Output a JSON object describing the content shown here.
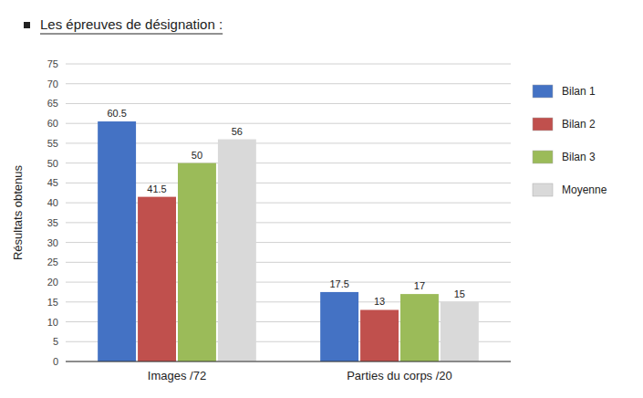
{
  "chart_data": {
    "type": "bar",
    "title": "Les épreuves de désignation :",
    "categories": [
      "Images /72",
      "Parties du corps /20"
    ],
    "series": [
      {
        "name": "Bilan 1",
        "color": "#4472C4",
        "values": [
          60.5,
          17.5
        ]
      },
      {
        "name": "Bilan 2",
        "color": "#C0504D",
        "values": [
          41.5,
          13
        ]
      },
      {
        "name": "Bilan 3",
        "color": "#9BBB59",
        "values": [
          50,
          17
        ]
      },
      {
        "name": "Moyenne",
        "color": "#D9D9D9",
        "values": [
          56,
          15
        ]
      }
    ],
    "ylabel": "Résultats obtenus",
    "ylim": [
      0,
      75
    ],
    "yticks": [
      0,
      5,
      10,
      15,
      20,
      25,
      30,
      35,
      40,
      45,
      50,
      55,
      60,
      65,
      70,
      75
    ],
    "grid": true,
    "legend": "right",
    "data_labels": true
  }
}
